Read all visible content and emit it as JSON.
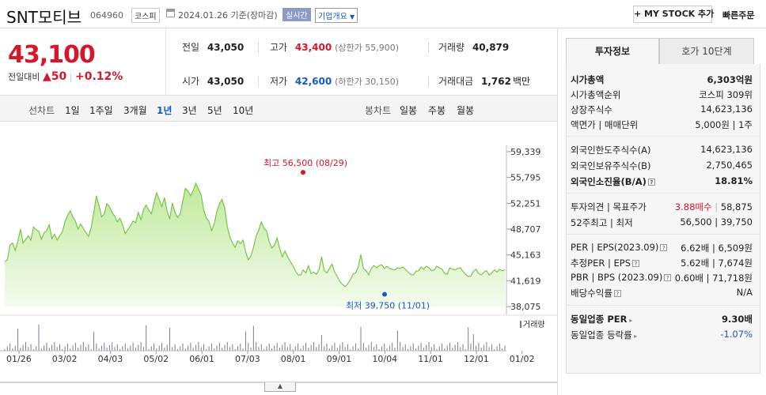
{
  "header": {
    "stock_name": "SNT모티브",
    "stock_code": "064960",
    "market_badge": "코스피",
    "date_text": "2024.01.26  기준(장마감)",
    "realtime_badge": "실시간",
    "company_info_label": "기업개요",
    "my_stock_button": "+ MY STOCK 추가",
    "quick_order_button": "빠른주문"
  },
  "price": {
    "current": "43,100",
    "change_label": "전일대비",
    "change_arrow": "▲",
    "change_value": "50",
    "change_pct": "+0.12%"
  },
  "quote_grid": {
    "prev_close_label": "전일",
    "prev_close": "43,050",
    "high_label": "고가",
    "high": "43,400",
    "upper_limit": "(상한가 55,900)",
    "volume_label": "거래량",
    "volume": "40,879",
    "open_label": "시가",
    "open": "43,050",
    "low_label": "저가",
    "low": "42,600",
    "lower_limit": "(하한가 30,150)",
    "amount_label": "거래대금",
    "amount": "1,762",
    "amount_unit": "백만"
  },
  "chart_tabs": {
    "line_label": "선차트",
    "line_periods": [
      "1일",
      "1주일",
      "3개월",
      "1년",
      "3년",
      "5년",
      "10년"
    ],
    "active_period": "1년",
    "candle_label": "봉차트",
    "candle_periods": [
      "일봉",
      "주봉",
      "월봉"
    ]
  },
  "chart_data": {
    "type": "area",
    "y_ticks": [
      "59,339",
      "55,795",
      "52,251",
      "48,707",
      "45,163",
      "41,619",
      "38,075"
    ],
    "ylim": [
      38075,
      59339
    ],
    "x_ticks": [
      "01/26",
      "03/02",
      "04/03",
      "05/02",
      "06/01",
      "07/03",
      "08/01",
      "09/01",
      "10/04",
      "11/01",
      "12/01",
      "01/02"
    ],
    "values": [
      44200,
      44500,
      46500,
      46800,
      45800,
      47000,
      48700,
      46800,
      47300,
      47800,
      47200,
      49000,
      48600,
      48400,
      47300,
      48200,
      48500,
      49300,
      47400,
      48000,
      47200,
      47800,
      48300,
      49700,
      50600,
      51200,
      50400,
      49800,
      48700,
      49400,
      48800,
      48200,
      47700,
      48900,
      51000,
      53300,
      52000,
      50400,
      50800,
      52200,
      51800,
      51000,
      50500,
      49700,
      50200,
      49300,
      48100,
      48600,
      49200,
      49800,
      49600,
      51000,
      50000,
      51400,
      52000,
      51300,
      50800,
      52300,
      53700,
      52800,
      51800,
      53000,
      51200,
      50100,
      52300,
      51000,
      50300,
      50800,
      52600,
      54300,
      53900,
      53300,
      54000,
      55000,
      54200,
      53400,
      51300,
      50200,
      49800,
      48500,
      49400,
      51100,
      52200,
      52800,
      51600,
      49000,
      47600,
      46800,
      46200,
      47100,
      46700,
      47200,
      45600,
      44500,
      45000,
      46200,
      47800,
      48600,
      49700,
      48800,
      48500,
      47000,
      46100,
      46500,
      47500,
      46100,
      44900,
      45700,
      44900,
      44300,
      43700,
      43000,
      42400,
      42400,
      43100,
      42700,
      43700,
      42600,
      42800,
      42500,
      43100,
      44900,
      43000,
      42700,
      43300,
      43900,
      42800,
      42200,
      41500,
      41100,
      40800,
      41200,
      41800,
      42500,
      42700,
      43500,
      45200,
      43300,
      43000,
      42400,
      43300,
      43700,
      43400,
      43700,
      43800,
      43300,
      43600,
      43300,
      43200,
      43100,
      43400,
      43300,
      43500,
      43200,
      42800,
      42500,
      42400,
      42900,
      43000,
      43500,
      43200,
      43600,
      43400,
      43000,
      43100,
      43600,
      43400,
      43200,
      42600,
      42500,
      43400,
      43200,
      43100,
      43300,
      43400,
      42900,
      42500,
      42200,
      42300,
      42900,
      43200,
      42600,
      42400,
      42800,
      43000,
      42400,
      42700,
      43100,
      42800,
      43200,
      43000,
      43100
    ],
    "high_label": "최고",
    "high_value": "56,500",
    "high_date": "(08/29)",
    "low_label": "최저",
    "low_value": "39,750",
    "low_date": "(11/01)",
    "volume_legend": "거래량",
    "colors": {
      "line": "#6bc43a",
      "fill_top": "#bfe99a",
      "high_marker": "#d6162a",
      "low_marker": "#1459c7",
      "volume": "#7b7b90"
    }
  },
  "side_panel": {
    "tab_invest": "투자정보",
    "tab_orderbook": "호가 10단계",
    "market_cap_label": "시가총액",
    "market_cap": "6,303억원",
    "market_cap_rank_label": "시가총액순위",
    "market_cap_rank": "코스피 309위",
    "shares_label": "상장주식수",
    "shares": "14,623,136",
    "par_label": "액면가 | 매매단위",
    "par": "5,000원 | 1주",
    "foreign_limit_label": "외국인한도주식수(A)",
    "foreign_limit": "14,623,136",
    "foreign_hold_label": "외국인보유주식수(B)",
    "foreign_hold": "2,750,465",
    "foreign_ratio_label": "외국인소진율(B/A)",
    "foreign_ratio": "18.81%",
    "opinion_label": "투자의견 | 목표주가",
    "opinion": "3.88매수",
    "target_price": "58,875",
    "w52_label": "52주최고 | 최저",
    "w52": "56,500 | 39,750",
    "per_label": "PER | EPS(2023.09)",
    "per": "6.62배 | 6,509원",
    "est_per_label": "추정PER | EPS",
    "est_per": "5.62배 | 7,674원",
    "pbr_label": "PBR | BPS (2023.09)",
    "pbr": "0.60배 | 71,718원",
    "div_label": "배당수익률",
    "div": "N/A",
    "ind_per_label": "동일업종 PER",
    "ind_per": "9.30배",
    "ind_change_label": "동일업종 등락률",
    "ind_change": "-1.07%"
  }
}
